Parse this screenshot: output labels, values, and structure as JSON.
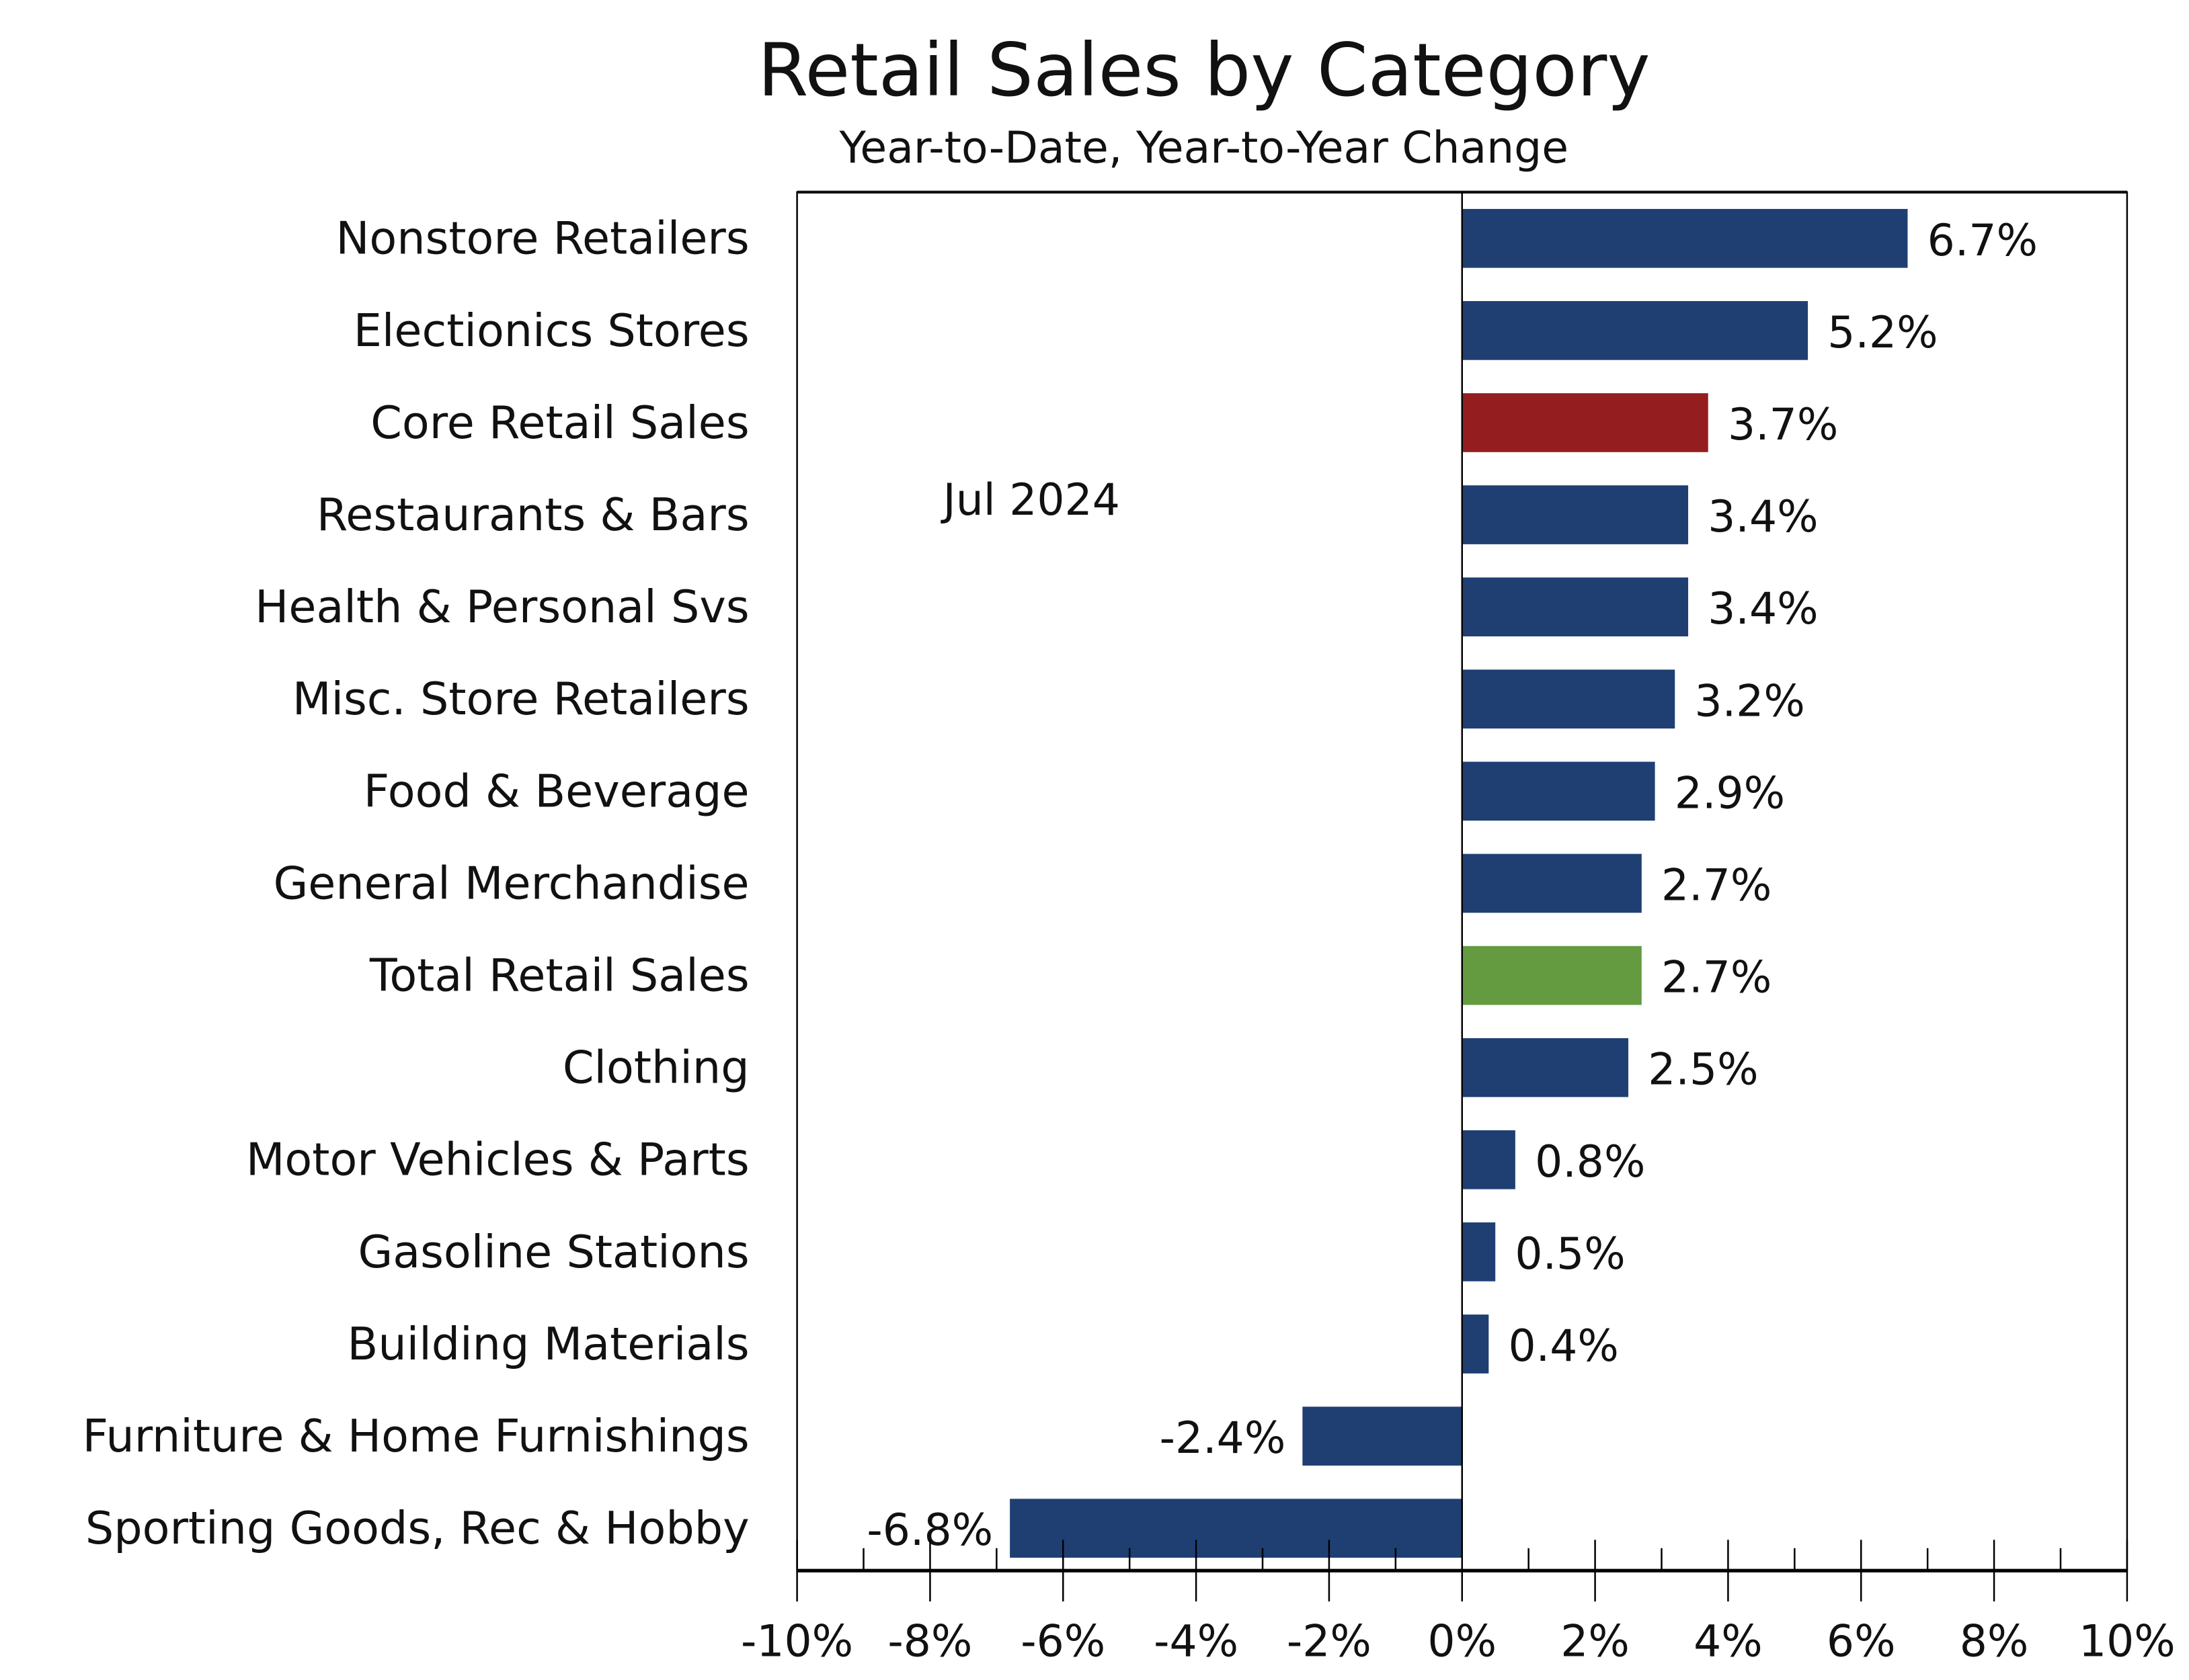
{
  "chart_data": {
    "type": "bar",
    "orientation": "horizontal",
    "title": "Retail Sales by Category",
    "subtitle": "Year-to-Date, Year-to-Year Change",
    "annotation": "Jul 2024",
    "xlabel": "",
    "ylabel": "",
    "xlim": [
      -10,
      10
    ],
    "xticks": [
      -10,
      -8,
      -6,
      -4,
      -2,
      0,
      2,
      4,
      6,
      8,
      10
    ],
    "xtick_labels": [
      "-10%",
      "-8%",
      "-6%",
      "-4%",
      "-2%",
      "0%",
      "2%",
      "4%",
      "6%",
      "8%",
      "10%"
    ],
    "grid": false,
    "categories": [
      "Nonstore Retailers",
      "Electionics Stores",
      "Core Retail Sales",
      "Restaurants & Bars",
      "Health & Personal Svs",
      "Misc. Store Retailers",
      "Food & Beverage ",
      "General Merchandise",
      "Total Retail Sales",
      "Clothing",
      "Motor Vehicles & Parts",
      "Gasoline Stations",
      "Building Materials",
      "Furniture & Home Furnishings",
      "Sporting Goods, Rec & Hobby"
    ],
    "values": [
      6.7,
      5.2,
      3.7,
      3.4,
      3.4,
      3.2,
      2.9,
      2.7,
      2.7,
      2.5,
      0.8,
      0.5,
      0.4,
      -2.4,
      -6.8
    ],
    "value_labels": [
      "6.7%",
      "5.2%",
      "3.7%",
      "3.4%",
      "3.4%",
      "3.2%",
      "2.9%",
      "2.7%",
      "2.7%",
      "2.5%",
      "0.8%",
      "0.5%",
      "0.4%",
      "-2.4%",
      "-6.8%"
    ],
    "colors": [
      "#1f3f73",
      "#1f3f73",
      "#941e1f",
      "#1f3f73",
      "#1f3f73",
      "#1f3f73",
      "#1f3f73",
      "#1f3f73",
      "#649b40",
      "#1f3f73",
      "#1f3f73",
      "#1f3f73",
      "#1f3f73",
      "#1f3f73",
      "#1f3f73"
    ]
  }
}
